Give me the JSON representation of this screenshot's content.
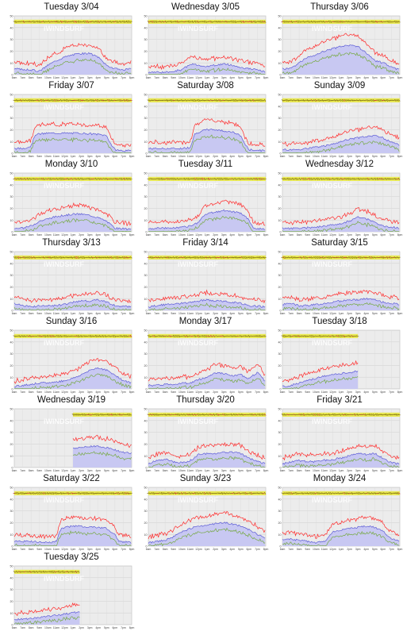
{
  "page": {
    "watermark": "iWINDSURF",
    "y_ticks": [
      "50",
      "40",
      "30",
      "20",
      "10",
      "0"
    ],
    "x_ticks": [
      "6am",
      "7am",
      "8am",
      "9am",
      "10am",
      "11am",
      "12pm",
      "1pm",
      "2pm",
      "3pm",
      "4pm",
      "5pm",
      "6pm",
      "7pm",
      "8pm"
    ]
  },
  "colors": {
    "gust": "#ff2a2a",
    "average": "#5c5cd6",
    "lull": "#77aa44",
    "fill": "#c8c8f2",
    "direction_band": "#e8e844",
    "plot_bg": "#ececec"
  },
  "chart_data": [
    {
      "title": "Tuesday 3/04",
      "type": "line",
      "x_range": [
        6,
        20
      ],
      "ylim": [
        0,
        50
      ],
      "start": 6,
      "end": 20,
      "profile": [
        [
          6,
          5
        ],
        [
          8,
          4
        ],
        [
          9,
          3
        ],
        [
          10,
          8
        ],
        [
          11,
          12
        ],
        [
          12,
          15
        ],
        [
          13,
          17
        ],
        [
          14,
          18
        ],
        [
          15,
          18
        ],
        [
          16,
          15
        ],
        [
          17,
          8
        ],
        [
          18,
          5
        ],
        [
          19,
          4
        ],
        [
          20,
          5
        ]
      ]
    },
    {
      "title": "Wednesday 3/05",
      "type": "line",
      "x_range": [
        6,
        20
      ],
      "ylim": [
        0,
        50
      ],
      "start": 6,
      "end": 20,
      "profile": [
        [
          6,
          2
        ],
        [
          8,
          2
        ],
        [
          9,
          3
        ],
        [
          10,
          4
        ],
        [
          11,
          9
        ],
        [
          12,
          8
        ],
        [
          13,
          7
        ],
        [
          14,
          8
        ],
        [
          15,
          9
        ],
        [
          16,
          8
        ],
        [
          17,
          6
        ],
        [
          18,
          5
        ],
        [
          19,
          4
        ],
        [
          20,
          2
        ]
      ]
    },
    {
      "title": "Thursday 3/06",
      "type": "line",
      "x_range": [
        6,
        20
      ],
      "ylim": [
        0,
        50
      ],
      "start": 6,
      "end": 20,
      "profile": [
        [
          6,
          5
        ],
        [
          7,
          5
        ],
        [
          8,
          10
        ],
        [
          9,
          15
        ],
        [
          10,
          17
        ],
        [
          11,
          20
        ],
        [
          12,
          22
        ],
        [
          13,
          24
        ],
        [
          14,
          25
        ],
        [
          15,
          24
        ],
        [
          16,
          18
        ],
        [
          17,
          12
        ],
        [
          18,
          10
        ],
        [
          19,
          6
        ],
        [
          20,
          4
        ]
      ]
    },
    {
      "title": "Friday 3/07",
      "type": "line",
      "x_range": [
        6,
        20
      ],
      "ylim": [
        0,
        50
      ],
      "start": 6,
      "end": 20,
      "profile": [
        [
          6,
          4
        ],
        [
          7,
          4
        ],
        [
          8,
          6
        ],
        [
          8.5,
          16
        ],
        [
          10,
          17
        ],
        [
          12,
          17
        ],
        [
          14,
          17
        ],
        [
          16,
          16
        ],
        [
          17,
          15
        ],
        [
          17.5,
          8
        ],
        [
          18,
          3
        ],
        [
          19,
          2
        ],
        [
          20,
          2
        ]
      ]
    },
    {
      "title": "Saturday 3/08",
      "type": "line",
      "x_range": [
        6,
        20
      ],
      "ylim": [
        0,
        50
      ],
      "start": 6,
      "end": 20,
      "profile": [
        [
          6,
          4
        ],
        [
          8,
          4
        ],
        [
          10,
          4
        ],
        [
          11,
          5
        ],
        [
          11.5,
          16
        ],
        [
          12,
          18
        ],
        [
          13,
          20
        ],
        [
          14,
          20
        ],
        [
          15,
          19
        ],
        [
          16,
          18
        ],
        [
          17,
          15
        ],
        [
          17.5,
          8
        ],
        [
          18,
          3
        ],
        [
          20,
          2
        ]
      ]
    },
    {
      "title": "Sunday 3/09",
      "type": "line",
      "x_range": [
        6,
        20
      ],
      "ylim": [
        0,
        50
      ],
      "start": 6,
      "end": 20,
      "profile": [
        [
          6,
          3
        ],
        [
          8,
          3
        ],
        [
          9,
          4
        ],
        [
          10,
          5
        ],
        [
          11,
          6
        ],
        [
          12,
          8
        ],
        [
          13,
          10
        ],
        [
          14,
          12
        ],
        [
          15,
          13
        ],
        [
          16,
          14
        ],
        [
          17,
          15
        ],
        [
          18,
          13
        ],
        [
          19,
          9
        ],
        [
          20,
          7
        ]
      ]
    },
    {
      "title": "Monday 3/10",
      "type": "line",
      "x_range": [
        6,
        20
      ],
      "ylim": [
        0,
        50
      ],
      "start": 6,
      "end": 20,
      "profile": [
        [
          6,
          3
        ],
        [
          7,
          3
        ],
        [
          8,
          5
        ],
        [
          9,
          9
        ],
        [
          10,
          11
        ],
        [
          11,
          13
        ],
        [
          12,
          14
        ],
        [
          13,
          15
        ],
        [
          14,
          15
        ],
        [
          15,
          14
        ],
        [
          16,
          12
        ],
        [
          17,
          9
        ],
        [
          18,
          3
        ],
        [
          20,
          2
        ]
      ]
    },
    {
      "title": "Tuesday 3/11",
      "type": "line",
      "x_range": [
        6,
        20
      ],
      "ylim": [
        0,
        50
      ],
      "start": 6,
      "end": 20,
      "profile": [
        [
          6,
          3
        ],
        [
          8,
          3
        ],
        [
          10,
          4
        ],
        [
          11,
          5
        ],
        [
          12,
          8
        ],
        [
          12.5,
          13
        ],
        [
          13,
          15
        ],
        [
          14,
          17
        ],
        [
          15,
          18
        ],
        [
          16,
          17
        ],
        [
          17,
          16
        ],
        [
          18,
          10
        ],
        [
          18.5,
          3
        ],
        [
          20,
          2
        ]
      ]
    },
    {
      "title": "Wednesday 3/12",
      "type": "line",
      "x_range": [
        6,
        20
      ],
      "ylim": [
        0,
        50
      ],
      "start": 6,
      "end": 20,
      "profile": [
        [
          6,
          3
        ],
        [
          8,
          3
        ],
        [
          10,
          4
        ],
        [
          11,
          5
        ],
        [
          12,
          6
        ],
        [
          13,
          7
        ],
        [
          14,
          9
        ],
        [
          15,
          13
        ],
        [
          16,
          11
        ],
        [
          17,
          8
        ],
        [
          18,
          5
        ],
        [
          19,
          4
        ],
        [
          20,
          3
        ]
      ]
    },
    {
      "title": "Thursday 3/13",
      "type": "line",
      "x_range": [
        6,
        20
      ],
      "ylim": [
        0,
        50
      ],
      "start": 6,
      "end": 20,
      "profile": [
        [
          6,
          6
        ],
        [
          7,
          4
        ],
        [
          8,
          3
        ],
        [
          9,
          4
        ],
        [
          10,
          4
        ],
        [
          11,
          4
        ],
        [
          12,
          5
        ],
        [
          13,
          7
        ],
        [
          14,
          8
        ],
        [
          15,
          8
        ],
        [
          16,
          9
        ],
        [
          17,
          7
        ],
        [
          18,
          4
        ],
        [
          20,
          3
        ]
      ]
    },
    {
      "title": "Friday 3/14",
      "type": "line",
      "x_range": [
        6,
        20
      ],
      "ylim": [
        0,
        50
      ],
      "start": 6,
      "end": 20,
      "profile": [
        [
          6,
          3
        ],
        [
          7,
          4
        ],
        [
          8,
          5
        ],
        [
          9,
          5
        ],
        [
          10,
          6
        ],
        [
          11,
          7
        ],
        [
          12,
          8
        ],
        [
          13,
          9
        ],
        [
          14,
          8
        ],
        [
          15,
          8
        ],
        [
          16,
          7
        ],
        [
          17,
          6
        ],
        [
          18,
          4
        ],
        [
          20,
          3
        ]
      ]
    },
    {
      "title": "Saturday 3/15",
      "type": "line",
      "x_range": [
        6,
        20
      ],
      "ylim": [
        0,
        50
      ],
      "start": 6,
      "end": 20,
      "profile": [
        [
          6,
          5
        ],
        [
          7,
          6
        ],
        [
          8,
          4
        ],
        [
          9,
          4
        ],
        [
          10,
          5
        ],
        [
          11,
          6
        ],
        [
          12,
          7
        ],
        [
          13,
          8
        ],
        [
          14,
          9
        ],
        [
          15,
          9
        ],
        [
          16,
          10
        ],
        [
          17,
          9
        ],
        [
          18,
          7
        ],
        [
          19,
          6
        ],
        [
          20,
          5
        ]
      ]
    },
    {
      "title": "Sunday 3/16",
      "type": "line",
      "x_range": [
        6,
        20
      ],
      "ylim": [
        0,
        50
      ],
      "start": 6,
      "end": 20,
      "profile": [
        [
          6,
          2
        ],
        [
          7,
          3
        ],
        [
          8,
          4
        ],
        [
          9,
          5
        ],
        [
          10,
          5
        ],
        [
          11,
          6
        ],
        [
          12,
          7
        ],
        [
          13,
          9
        ],
        [
          14,
          12
        ],
        [
          15,
          16
        ],
        [
          16,
          18
        ],
        [
          17,
          16
        ],
        [
          18,
          12
        ],
        [
          19,
          7
        ],
        [
          20,
          5
        ]
      ]
    },
    {
      "title": "Monday 3/17",
      "type": "line",
      "x_range": [
        6,
        20
      ],
      "ylim": [
        0,
        50
      ],
      "start": 6,
      "end": 20,
      "profile": [
        [
          6,
          3
        ],
        [
          7,
          3
        ],
        [
          8,
          4
        ],
        [
          9,
          4
        ],
        [
          10,
          5
        ],
        [
          11,
          5
        ],
        [
          12,
          8
        ],
        [
          13,
          10
        ],
        [
          14,
          14
        ],
        [
          15,
          13
        ],
        [
          16,
          11
        ],
        [
          17,
          12
        ],
        [
          18,
          9
        ],
        [
          19,
          14
        ],
        [
          20,
          6
        ]
      ]
    },
    {
      "title": "Tuesday 3/18",
      "type": "line",
      "x_range": [
        6,
        20
      ],
      "ylim": [
        0,
        50
      ],
      "start": 6,
      "end": 15,
      "profile": [
        [
          6,
          2
        ],
        [
          7,
          3
        ],
        [
          8,
          5
        ],
        [
          9,
          7
        ],
        [
          10,
          9
        ],
        [
          11,
          11
        ],
        [
          12,
          12
        ],
        [
          13,
          13
        ],
        [
          14,
          14
        ],
        [
          15,
          15
        ]
      ]
    },
    {
      "title": "Wednesday 3/19",
      "type": "line",
      "x_range": [
        6,
        20
      ],
      "ylim": [
        0,
        50
      ],
      "start": 13,
      "end": 20,
      "profile": [
        [
          13,
          16
        ],
        [
          14,
          17
        ],
        [
          15,
          18
        ],
        [
          16,
          18
        ],
        [
          17,
          17
        ],
        [
          18,
          15
        ],
        [
          19,
          13
        ],
        [
          20,
          12
        ]
      ]
    },
    {
      "title": "Thursday 3/20",
      "type": "line",
      "x_range": [
        6,
        20
      ],
      "ylim": [
        0,
        50
      ],
      "start": 6,
      "end": 20,
      "profile": [
        [
          6,
          3
        ],
        [
          7,
          6
        ],
        [
          8,
          7
        ],
        [
          9,
          5
        ],
        [
          10,
          4
        ],
        [
          11,
          6
        ],
        [
          12,
          11
        ],
        [
          13,
          12
        ],
        [
          14,
          12
        ],
        [
          15,
          13
        ],
        [
          16,
          13
        ],
        [
          17,
          12
        ],
        [
          18,
          8
        ],
        [
          19,
          5
        ],
        [
          20,
          3
        ]
      ]
    },
    {
      "title": "Friday 3/21",
      "type": "line",
      "x_range": [
        6,
        20
      ],
      "ylim": [
        0,
        50
      ],
      "start": 6,
      "end": 20,
      "profile": [
        [
          6,
          3
        ],
        [
          7,
          5
        ],
        [
          8,
          6
        ],
        [
          9,
          5
        ],
        [
          10,
          5
        ],
        [
          11,
          6
        ],
        [
          12,
          7
        ],
        [
          13,
          8
        ],
        [
          14,
          10
        ],
        [
          15,
          12
        ],
        [
          16,
          11
        ],
        [
          17,
          12
        ],
        [
          18,
          8
        ],
        [
          19,
          4
        ],
        [
          20,
          3
        ]
      ]
    },
    {
      "title": "Saturday 3/22",
      "type": "line",
      "x_range": [
        6,
        20
      ],
      "ylim": [
        0,
        50
      ],
      "start": 6,
      "end": 20,
      "profile": [
        [
          6,
          4
        ],
        [
          8,
          4
        ],
        [
          10,
          3
        ],
        [
          11,
          4
        ],
        [
          11.5,
          14
        ],
        [
          12,
          16
        ],
        [
          13,
          17
        ],
        [
          14,
          17
        ],
        [
          15,
          16
        ],
        [
          16,
          16
        ],
        [
          17,
          15
        ],
        [
          18,
          10
        ],
        [
          18.5,
          4
        ],
        [
          20,
          3
        ]
      ]
    },
    {
      "title": "Sunday 3/23",
      "type": "line",
      "x_range": [
        6,
        20
      ],
      "ylim": [
        0,
        50
      ],
      "start": 6,
      "end": 20,
      "profile": [
        [
          6,
          3
        ],
        [
          7,
          4
        ],
        [
          8,
          5
        ],
        [
          9,
          8
        ],
        [
          10,
          12
        ],
        [
          11,
          15
        ],
        [
          12,
          17
        ],
        [
          13,
          18
        ],
        [
          14,
          19
        ],
        [
          15,
          20
        ],
        [
          16,
          19
        ],
        [
          17,
          17
        ],
        [
          18,
          14
        ],
        [
          19,
          10
        ],
        [
          20,
          6
        ]
      ]
    },
    {
      "title": "Monday 3/24",
      "type": "line",
      "x_range": [
        6,
        20
      ],
      "ylim": [
        0,
        50
      ],
      "start": 6,
      "end": 20,
      "profile": [
        [
          6,
          5
        ],
        [
          7,
          6
        ],
        [
          8,
          5
        ],
        [
          9,
          4
        ],
        [
          10,
          3
        ],
        [
          11,
          4
        ],
        [
          12,
          12
        ],
        [
          13,
          14
        ],
        [
          14,
          15
        ],
        [
          15,
          16
        ],
        [
          16,
          17
        ],
        [
          17,
          16
        ],
        [
          18,
          13
        ],
        [
          19,
          6
        ],
        [
          20,
          4
        ]
      ]
    },
    {
      "title": "Tuesday 3/25",
      "type": "line",
      "x_range": [
        6,
        20
      ],
      "ylim": [
        0,
        50
      ],
      "start": 6,
      "end": 13.8,
      "profile": [
        [
          6,
          4
        ],
        [
          7,
          5
        ],
        [
          8,
          5
        ],
        [
          9,
          6
        ],
        [
          10,
          7
        ],
        [
          11,
          8
        ],
        [
          12,
          9
        ],
        [
          13,
          10
        ],
        [
          13.8,
          11
        ]
      ]
    }
  ]
}
